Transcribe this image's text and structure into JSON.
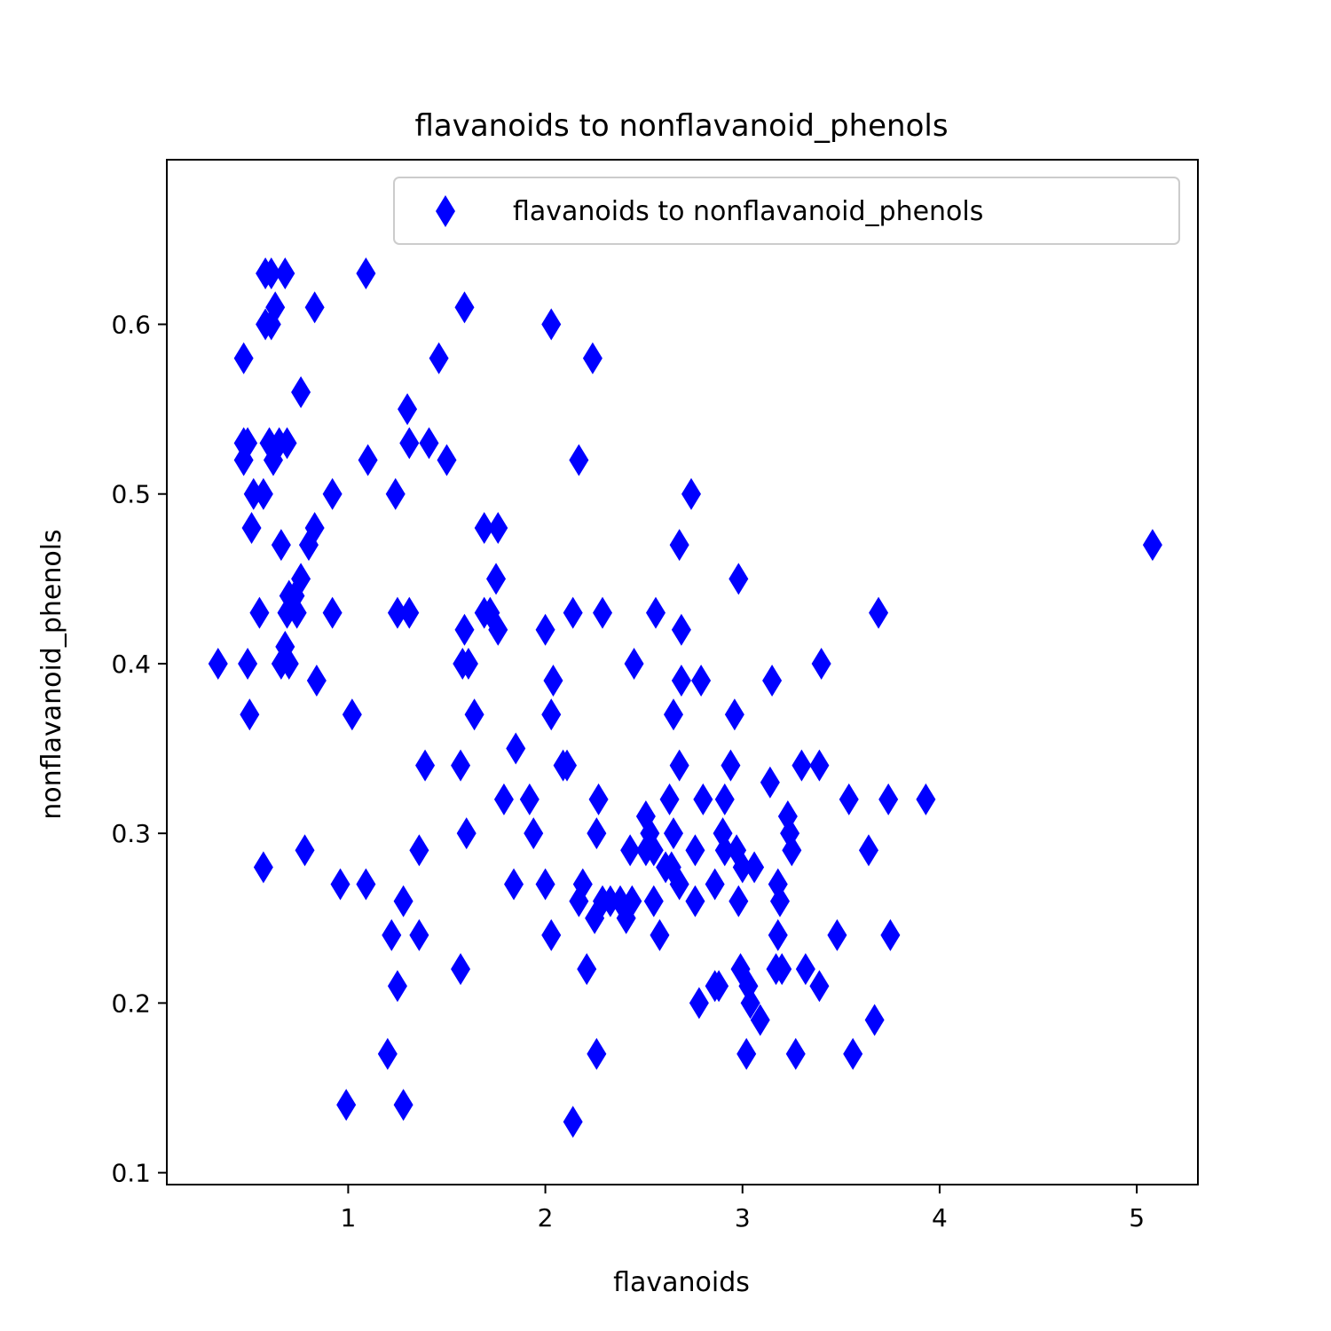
{
  "chart_data": {
    "type": "scatter",
    "title": "flavanoids to nonflavanoid_phenols",
    "xlabel": "flavanoids",
    "ylabel": "nonflavanoid_phenols",
    "xlim": [
      0.08,
      5.31
    ],
    "ylim": [
      0.093,
      0.697
    ],
    "xticks": [
      1,
      2,
      3,
      4,
      5
    ],
    "yticks": [
      0.1,
      0.2,
      0.3,
      0.4,
      0.5,
      0.6
    ],
    "xtick_labels": [
      "1",
      "2",
      "3",
      "4",
      "5"
    ],
    "ytick_labels": [
      "0.1",
      "0.2",
      "0.3",
      "0.4",
      "0.5",
      "0.6"
    ],
    "grid": false,
    "legend_position": "upper right",
    "marker": "thin-diamond",
    "color": "#0000ff",
    "series": [
      {
        "name": "flavanoids to nonflavanoid_phenols",
        "points": [
          [
            0.34,
            0.4
          ],
          [
            0.47,
            0.58
          ],
          [
            0.47,
            0.53
          ],
          [
            0.47,
            0.52
          ],
          [
            0.49,
            0.53
          ],
          [
            0.49,
            0.4
          ],
          [
            0.5,
            0.37
          ],
          [
            0.51,
            0.48
          ],
          [
            0.52,
            0.5
          ],
          [
            0.55,
            0.43
          ],
          [
            0.57,
            0.5
          ],
          [
            0.57,
            0.28
          ],
          [
            0.58,
            0.63
          ],
          [
            0.58,
            0.6
          ],
          [
            0.6,
            0.53
          ],
          [
            0.61,
            0.63
          ],
          [
            0.61,
            0.6
          ],
          [
            0.62,
            0.52
          ],
          [
            0.63,
            0.61
          ],
          [
            0.65,
            0.53
          ],
          [
            0.66,
            0.4
          ],
          [
            0.66,
            0.47
          ],
          [
            0.68,
            0.63
          ],
          [
            0.68,
            0.41
          ],
          [
            0.69,
            0.53
          ],
          [
            0.69,
            0.43
          ],
          [
            0.7,
            0.44
          ],
          [
            0.7,
            0.4
          ],
          [
            0.73,
            0.44
          ],
          [
            0.74,
            0.43
          ],
          [
            0.76,
            0.45
          ],
          [
            0.76,
            0.56
          ],
          [
            0.78,
            0.29
          ],
          [
            0.8,
            0.47
          ],
          [
            0.83,
            0.48
          ],
          [
            0.83,
            0.61
          ],
          [
            0.84,
            0.39
          ],
          [
            0.92,
            0.5
          ],
          [
            0.92,
            0.43
          ],
          [
            0.96,
            0.27
          ],
          [
            0.99,
            0.14
          ],
          [
            1.02,
            0.37
          ],
          [
            1.09,
            0.27
          ],
          [
            1.09,
            0.63
          ],
          [
            1.1,
            0.52
          ],
          [
            1.2,
            0.17
          ],
          [
            1.22,
            0.24
          ],
          [
            1.24,
            0.5
          ],
          [
            1.25,
            0.43
          ],
          [
            1.25,
            0.21
          ],
          [
            1.28,
            0.26
          ],
          [
            1.28,
            0.14
          ],
          [
            1.3,
            0.55
          ],
          [
            1.31,
            0.53
          ],
          [
            1.31,
            0.43
          ],
          [
            1.36,
            0.29
          ],
          [
            1.36,
            0.24
          ],
          [
            1.39,
            0.34
          ],
          [
            1.41,
            0.53
          ],
          [
            1.46,
            0.58
          ],
          [
            1.5,
            0.52
          ],
          [
            1.57,
            0.34
          ],
          [
            1.57,
            0.22
          ],
          [
            1.58,
            0.4
          ],
          [
            1.59,
            0.42
          ],
          [
            1.59,
            0.61
          ],
          [
            1.6,
            0.3
          ],
          [
            1.61,
            0.4
          ],
          [
            1.64,
            0.37
          ],
          [
            1.69,
            0.48
          ],
          [
            1.69,
            0.43
          ],
          [
            1.72,
            0.43
          ],
          [
            1.75,
            0.45
          ],
          [
            1.76,
            0.42
          ],
          [
            1.76,
            0.48
          ],
          [
            1.79,
            0.32
          ],
          [
            1.84,
            0.27
          ],
          [
            1.85,
            0.35
          ],
          [
            1.92,
            0.32
          ],
          [
            1.94,
            0.3
          ],
          [
            2.0,
            0.42
          ],
          [
            2.0,
            0.27
          ],
          [
            2.03,
            0.37
          ],
          [
            2.03,
            0.24
          ],
          [
            2.03,
            0.6
          ],
          [
            2.04,
            0.39
          ],
          [
            2.09,
            0.34
          ],
          [
            2.11,
            0.34
          ],
          [
            2.14,
            0.43
          ],
          [
            2.14,
            0.13
          ],
          [
            2.17,
            0.52
          ],
          [
            2.17,
            0.26
          ],
          [
            2.19,
            0.27
          ],
          [
            2.21,
            0.22
          ],
          [
            2.24,
            0.58
          ],
          [
            2.25,
            0.25
          ],
          [
            2.26,
            0.17
          ],
          [
            2.26,
            0.3
          ],
          [
            2.27,
            0.32
          ],
          [
            2.29,
            0.43
          ],
          [
            2.29,
            0.26
          ],
          [
            2.33,
            0.26
          ],
          [
            2.38,
            0.26
          ],
          [
            2.41,
            0.25
          ],
          [
            2.43,
            0.29
          ],
          [
            2.44,
            0.26
          ],
          [
            2.45,
            0.4
          ],
          [
            2.51,
            0.31
          ],
          [
            2.51,
            0.29
          ],
          [
            2.53,
            0.3
          ],
          [
            2.55,
            0.26
          ],
          [
            2.55,
            0.29
          ],
          [
            2.56,
            0.43
          ],
          [
            2.58,
            0.24
          ],
          [
            2.61,
            0.28
          ],
          [
            2.63,
            0.32
          ],
          [
            2.64,
            0.28
          ],
          [
            2.65,
            0.37
          ],
          [
            2.65,
            0.3
          ],
          [
            2.68,
            0.27
          ],
          [
            2.68,
            0.34
          ],
          [
            2.68,
            0.47
          ],
          [
            2.69,
            0.42
          ],
          [
            2.69,
            0.39
          ],
          [
            2.74,
            0.5
          ],
          [
            2.76,
            0.29
          ],
          [
            2.76,
            0.26
          ],
          [
            2.78,
            0.2
          ],
          [
            2.79,
            0.39
          ],
          [
            2.8,
            0.32
          ],
          [
            2.86,
            0.21
          ],
          [
            2.86,
            0.27
          ],
          [
            2.88,
            0.21
          ],
          [
            2.9,
            0.3
          ],
          [
            2.91,
            0.32
          ],
          [
            2.91,
            0.29
          ],
          [
            2.94,
            0.34
          ],
          [
            2.96,
            0.37
          ],
          [
            2.97,
            0.29
          ],
          [
            2.98,
            0.26
          ],
          [
            2.98,
            0.45
          ],
          [
            2.99,
            0.22
          ],
          [
            3.0,
            0.28
          ],
          [
            3.02,
            0.17
          ],
          [
            3.03,
            0.21
          ],
          [
            3.04,
            0.2
          ],
          [
            3.06,
            0.28
          ],
          [
            3.09,
            0.19
          ],
          [
            3.14,
            0.33
          ],
          [
            3.15,
            0.39
          ],
          [
            3.17,
            0.22
          ],
          [
            3.18,
            0.27
          ],
          [
            3.18,
            0.24
          ],
          [
            3.19,
            0.26
          ],
          [
            3.2,
            0.22
          ],
          [
            3.23,
            0.31
          ],
          [
            3.24,
            0.3
          ],
          [
            3.25,
            0.29
          ],
          [
            3.27,
            0.17
          ],
          [
            3.3,
            0.34
          ],
          [
            3.32,
            0.22
          ],
          [
            3.39,
            0.21
          ],
          [
            3.39,
            0.34
          ],
          [
            3.4,
            0.4
          ],
          [
            3.48,
            0.24
          ],
          [
            3.54,
            0.32
          ],
          [
            3.56,
            0.17
          ],
          [
            3.64,
            0.29
          ],
          [
            3.67,
            0.19
          ],
          [
            3.69,
            0.43
          ],
          [
            3.74,
            0.32
          ],
          [
            3.75,
            0.24
          ],
          [
            3.93,
            0.32
          ],
          [
            5.08,
            0.47
          ]
        ]
      }
    ]
  }
}
